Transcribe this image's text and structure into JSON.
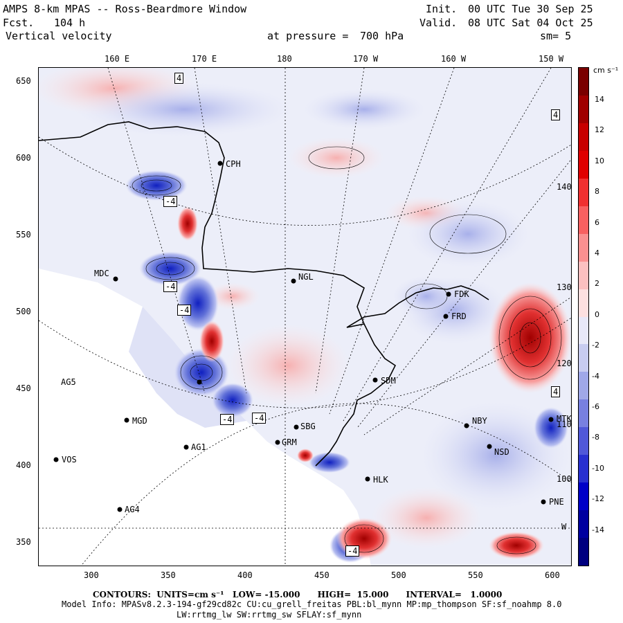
{
  "header": {
    "model_title": "AMPS 8-km MPAS -- Ross-Beardmore Window",
    "forecast_label": "Fcst.",
    "forecast_hours": "104 h",
    "field_name": "Vertical velocity",
    "init_label": "Init.",
    "init_time": "00 UTC Tue 30 Sep 25",
    "valid_label": "Valid.",
    "valid_time": "08 UTC Sat 04 Oct 25",
    "pressure_label": "at pressure =",
    "pressure_value": "700 hPa",
    "smoothing": "sm= 5"
  },
  "axes": {
    "top_longitudes": [
      "160 E",
      "170 E",
      "180",
      "170 W",
      "160 W",
      "150 W"
    ],
    "left_y_ticks": [
      "650",
      "600",
      "550",
      "500",
      "450",
      "400",
      "350"
    ],
    "bottom_x_ticks": [
      "300",
      "350",
      "400",
      "450",
      "500",
      "550",
      "600"
    ],
    "right_longitudes": [
      "140 W",
      "130 W",
      "120 W",
      "110 W",
      "100 W",
      "W"
    ]
  },
  "colorbar": {
    "units": "cm s⁻¹",
    "labels": [
      "14",
      "12",
      "10",
      "8",
      "6",
      "4",
      "2",
      "0",
      "-2",
      "-4",
      "-6",
      "-8",
      "-10",
      "-12",
      "-14"
    ],
    "colors": [
      "#7a0000",
      "#a00000",
      "#c80000",
      "#e00000",
      "#f03030",
      "#f86060",
      "#fa9090",
      "#fcc0c0",
      "#fde0e0",
      "#e8e8f8",
      "#c8ccf0",
      "#a0a8e8",
      "#7880e0",
      "#5058d8",
      "#2830d0",
      "#0000c8",
      "#0000a0",
      "#000080"
    ]
  },
  "stations": [
    {
      "code": "CPH"
    },
    {
      "code": "MDC"
    },
    {
      "code": "NGL"
    },
    {
      "code": "FDK"
    },
    {
      "code": "FRD"
    },
    {
      "code": "SDM"
    },
    {
      "code": "AG5"
    },
    {
      "code": "MGD"
    },
    {
      "code": "AG1"
    },
    {
      "code": "VOS"
    },
    {
      "code": "AG4"
    },
    {
      "code": "NBY"
    },
    {
      "code": "NSD"
    },
    {
      "code": "HLK"
    },
    {
      "code": "PNE"
    },
    {
      "code": "SBG"
    },
    {
      "code": "GRM"
    },
    {
      "code": "MTK"
    }
  ],
  "contour_labels": [
    "4",
    "-4",
    "-4",
    "4",
    "-4",
    "-4",
    "-4",
    "-4",
    "4"
  ],
  "footer": {
    "contours_line": "CONTOURS:  UNITS=cm s⁻¹   LOW= -15.000      HIGH=  15.000      INTERVAL=   1.0000",
    "model_info": "Model Info: MPASv8.2.3-194-gf29cd82c CU:cu_grell_freitas PBL:bl_mynn MP:mp_thompson SF:sf_noahmp 8.0",
    "radiation_info": "LW:rrtmg_lw SW:rrtmg_sw SFLAY:sf_mynn"
  }
}
